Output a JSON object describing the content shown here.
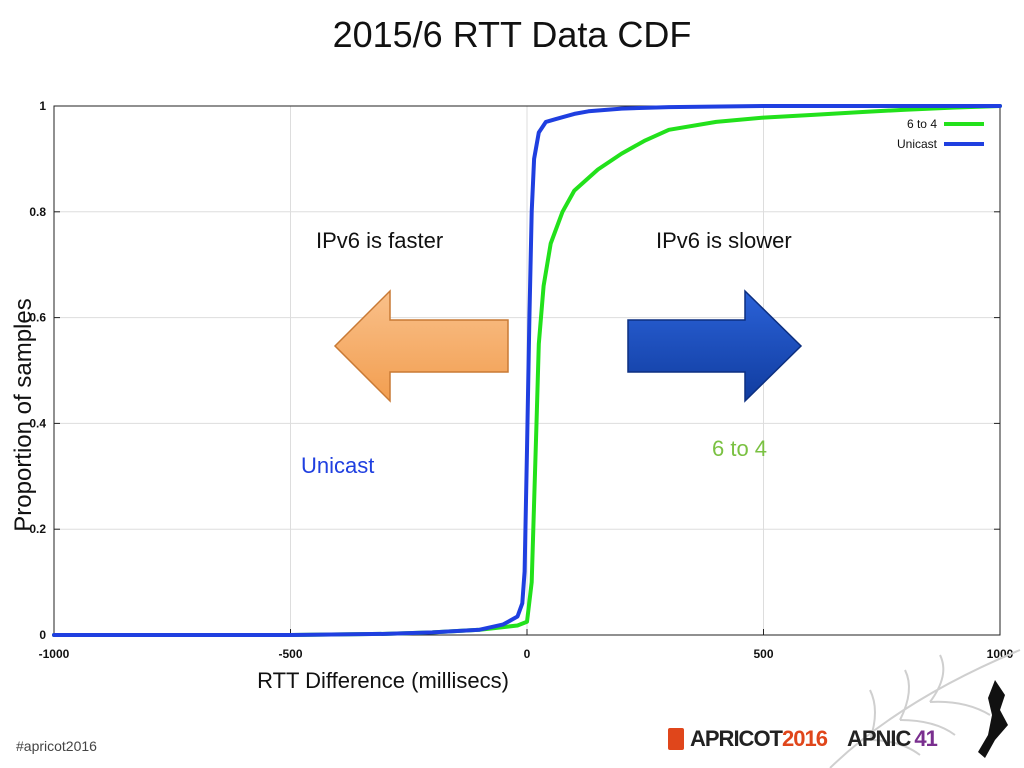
{
  "slide": {
    "title": "2015/6 RTT Data CDF",
    "hashtag": "#apricot2016",
    "logos": {
      "apricot_text": "APRICOT",
      "apricot_year": "2016",
      "apnic_text": "APNIC",
      "apnic_num": "41"
    }
  },
  "annotations": {
    "faster": "IPv6 is faster",
    "slower": "IPv6 is slower",
    "unicast": "Unicast",
    "six_to_four": "6 to 4"
  },
  "colors": {
    "unicast": "#1f3fe0",
    "six_to_four": "#22e11b",
    "left_arrow": "#f7b06c",
    "right_arrow": "#1d50c8"
  },
  "chart_data": {
    "type": "line",
    "title": "",
    "xlabel": "RTT Difference (millisecs)",
    "ylabel": "Proportion of samples",
    "xlim": [
      -1000,
      1000
    ],
    "ylim": [
      0,
      1
    ],
    "x_ticks": [
      "-1000",
      "-500",
      "0",
      "500",
      "1000"
    ],
    "y_ticks": [
      "0",
      "0.2",
      "0.4",
      "0.6",
      "0.8",
      "1"
    ],
    "grid": true,
    "legend_position": "top-right",
    "series": [
      {
        "name": "6 to 4",
        "color": "#22e11b",
        "points": [
          [
            -1000,
            0
          ],
          [
            -500,
            0
          ],
          [
            -300,
            0.002
          ],
          [
            -200,
            0.005
          ],
          [
            -100,
            0.01
          ],
          [
            -50,
            0.015
          ],
          [
            -20,
            0.018
          ],
          [
            0,
            0.025
          ],
          [
            10,
            0.1
          ],
          [
            20,
            0.4
          ],
          [
            25,
            0.55
          ],
          [
            35,
            0.66
          ],
          [
            50,
            0.74
          ],
          [
            75,
            0.8
          ],
          [
            100,
            0.84
          ],
          [
            150,
            0.88
          ],
          [
            200,
            0.91
          ],
          [
            250,
            0.935
          ],
          [
            300,
            0.955
          ],
          [
            400,
            0.97
          ],
          [
            500,
            0.978
          ],
          [
            600,
            0.983
          ],
          [
            700,
            0.988
          ],
          [
            800,
            0.993
          ],
          [
            900,
            0.997
          ],
          [
            1000,
            1
          ]
        ]
      },
      {
        "name": "Unicast",
        "color": "#1f3fe0",
        "points": [
          [
            -1000,
            0
          ],
          [
            -500,
            0
          ],
          [
            -300,
            0.002
          ],
          [
            -200,
            0.005
          ],
          [
            -100,
            0.01
          ],
          [
            -50,
            0.02
          ],
          [
            -20,
            0.035
          ],
          [
            -10,
            0.06
          ],
          [
            -5,
            0.12
          ],
          [
            0,
            0.35
          ],
          [
            5,
            0.6
          ],
          [
            10,
            0.8
          ],
          [
            15,
            0.9
          ],
          [
            25,
            0.95
          ],
          [
            40,
            0.97
          ],
          [
            60,
            0.975
          ],
          [
            80,
            0.98
          ],
          [
            100,
            0.985
          ],
          [
            130,
            0.99
          ],
          [
            200,
            0.995
          ],
          [
            300,
            0.998
          ],
          [
            500,
            1
          ],
          [
            1000,
            1
          ]
        ]
      }
    ]
  }
}
